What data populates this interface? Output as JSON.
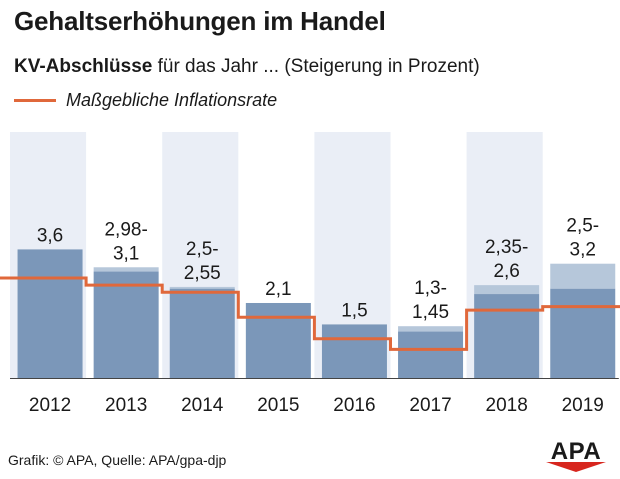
{
  "header": {
    "title": "Gehaltserhöhungen im Handel",
    "subtitle_bold": "KV-Abschlüsse",
    "subtitle_rest": " für das Jahr ... (Steigerung in Prozent)",
    "legend_label": "Maßgebliche Inflationsrate"
  },
  "footer": {
    "source": "Grafik: © APA, Quelle: APA/gpa-djp",
    "logo_text": "APA"
  },
  "colors": {
    "bar_dark": "#7b97b9",
    "bar_light": "#b6c7da",
    "band": "#eaeef6",
    "inflation_line": "#e0683b",
    "logo_red": "#d7261e"
  },
  "chart_data": {
    "type": "bar",
    "categories": [
      "2012",
      "2013",
      "2014",
      "2015",
      "2016",
      "2017",
      "2018",
      "2019"
    ],
    "series": [
      {
        "name": "KV-Abschlüsse (min)",
        "values": [
          3.6,
          2.98,
          2.5,
          2.1,
          1.5,
          1.3,
          2.35,
          2.5
        ]
      },
      {
        "name": "KV-Abschlüsse (max)",
        "values": [
          3.6,
          3.1,
          2.55,
          2.1,
          1.5,
          1.45,
          2.6,
          3.2
        ]
      },
      {
        "name": "Maßgebliche Inflationsrate",
        "type": "step-line",
        "values": [
          2.8,
          2.6,
          2.4,
          1.7,
          1.1,
          0.8,
          1.9,
          2.0
        ]
      }
    ],
    "data_labels": [
      [
        "3,6"
      ],
      [
        "2,98-",
        "3,1"
      ],
      [
        "2,5-",
        "2,55"
      ],
      [
        "2,1"
      ],
      [
        "1,5"
      ],
      [
        "1,3-",
        "1,45"
      ],
      [
        "2,35-",
        "2,6"
      ],
      [
        "2,5-",
        "3,2"
      ]
    ],
    "ylim": [
      0,
      5
    ],
    "xlabel": "",
    "ylabel": "",
    "grid": false,
    "legend": "top-left"
  }
}
